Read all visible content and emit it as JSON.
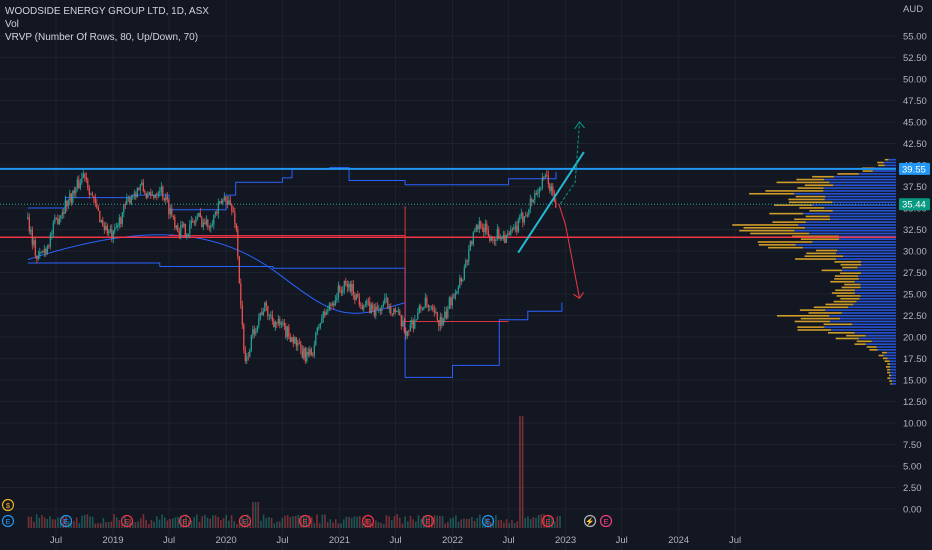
{
  "legend": {
    "title": "WOODSIDE ENERGY GROUP LTD, 1D, ASX",
    "vol": "Vol",
    "vrvp": "VRVP (Number Of Rows, 80, Up/Down, 70)"
  },
  "colors": {
    "background": "#131722",
    "up": "#26a69a",
    "down": "#ef5350",
    "resistance_line": "#2196f3",
    "support_line": "#f23645",
    "envelope": "#2962ff",
    "trend_line": "#22b8cf",
    "vrvp_up": "#2962ff",
    "vrvp_down": "#f0b429",
    "arrow_up": "#089981",
    "arrow_down": "#f23645"
  },
  "chart_data": {
    "type": "line",
    "currency": "AUD",
    "y_ticks": [
      "55.00",
      "52.50",
      "50.00",
      "47.50",
      "45.00",
      "42.50",
      "40.00",
      "37.50",
      "35.00",
      "32.50",
      "30.00",
      "27.50",
      "25.00",
      "22.50",
      "20.00",
      "17.50",
      "15.00",
      "12.50",
      "10.00",
      "7.50",
      "5.00",
      "2.50",
      "0.00"
    ],
    "ylim": [
      0,
      57
    ],
    "x_ticks": [
      "Jul",
      "2019",
      "Jul",
      "2020",
      "Jul",
      "2021",
      "Jul",
      "2022",
      "Jul",
      "2023",
      "Jul",
      "2024",
      "Jul"
    ],
    "x_dates": [
      "2018-07",
      "2019-01",
      "2019-07",
      "2020-01",
      "2020-07",
      "2021-01",
      "2021-07",
      "2022-01",
      "2022-07",
      "2023-01",
      "2023-07",
      "2024-01",
      "2024-07"
    ],
    "price_labels": {
      "resistance": "39.55",
      "last": "35.44"
    },
    "price_path": [
      [
        "2018-04-01",
        33.8
      ],
      [
        "2018-05-01",
        29.0
      ],
      [
        "2018-06-01",
        30.5
      ],
      [
        "2018-07-01",
        33.5
      ],
      [
        "2018-08-01",
        35.5
      ],
      [
        "2018-09-01",
        37.0
      ],
      [
        "2018-10-01",
        39.2
      ],
      [
        "2018-11-01",
        35.5
      ],
      [
        "2018-12-01",
        33.0
      ],
      [
        "2019-01-01",
        31.5
      ],
      [
        "2019-02-01",
        34.5
      ],
      [
        "2019-03-01",
        36.5
      ],
      [
        "2019-04-01",
        37.5
      ],
      [
        "2019-05-01",
        36.0
      ],
      [
        "2019-06-01",
        37.5
      ],
      [
        "2019-07-01",
        35.0
      ],
      [
        "2019-08-01",
        32.5
      ],
      [
        "2019-09-01",
        32.5
      ],
      [
        "2019-10-01",
        34.0
      ],
      [
        "2019-11-01",
        33.0
      ],
      [
        "2019-12-01",
        34.5
      ],
      [
        "2020-01-01",
        36.5
      ],
      [
        "2020-02-01",
        33.5
      ],
      [
        "2020-03-01",
        16.5
      ],
      [
        "2020-04-01",
        21.0
      ],
      [
        "2020-05-01",
        23.5
      ],
      [
        "2020-06-01",
        22.0
      ],
      [
        "2020-07-01",
        21.0
      ],
      [
        "2020-08-01",
        20.0
      ],
      [
        "2020-09-01",
        18.0
      ],
      [
        "2020-10-01",
        17.8
      ],
      [
        "2020-11-01",
        22.0
      ],
      [
        "2020-12-01",
        23.5
      ],
      [
        "2021-01-01",
        25.5
      ],
      [
        "2021-02-01",
        26.0
      ],
      [
        "2021-03-01",
        24.5
      ],
      [
        "2021-04-01",
        23.5
      ],
      [
        "2021-05-01",
        23.0
      ],
      [
        "2021-06-01",
        24.0
      ],
      [
        "2021-07-01",
        23.0
      ],
      [
        "2021-08-01",
        20.5
      ],
      [
        "2021-09-01",
        22.0
      ],
      [
        "2021-10-01",
        24.0
      ],
      [
        "2021-11-01",
        22.5
      ],
      [
        "2021-12-01",
        21.5
      ],
      [
        "2022-01-01",
        25.0
      ],
      [
        "2022-02-01",
        27.0
      ],
      [
        "2022-03-01",
        31.0
      ],
      [
        "2022-04-01",
        33.5
      ],
      [
        "2022-05-01",
        31.5
      ],
      [
        "2022-06-01",
        32.0
      ],
      [
        "2022-07-01",
        31.5
      ],
      [
        "2022-08-01",
        33.0
      ],
      [
        "2022-09-01",
        35.0
      ],
      [
        "2022-10-01",
        37.0
      ],
      [
        "2022-11-01",
        38.5
      ],
      [
        "2022-12-01",
        35.44
      ]
    ],
    "volume_bars": 200,
    "drawings": {
      "resistance": 39.55,
      "support": 31.6,
      "last_price": 35.44,
      "trend_line": [
        [
          "2022-08-01",
          29.8
        ],
        [
          "2023-03-01",
          41.5
        ]
      ],
      "arrow_up": [
        [
          "2022-12-15",
          35.5
        ],
        [
          "2023-02-01",
          38.0
        ],
        [
          "2023-02-15",
          45.0
        ]
      ],
      "arrow_down": [
        [
          "2022-12-10",
          35.5
        ],
        [
          "2023-01-01",
          33.0
        ],
        [
          "2023-02-15",
          24.5
        ]
      ]
    }
  }
}
